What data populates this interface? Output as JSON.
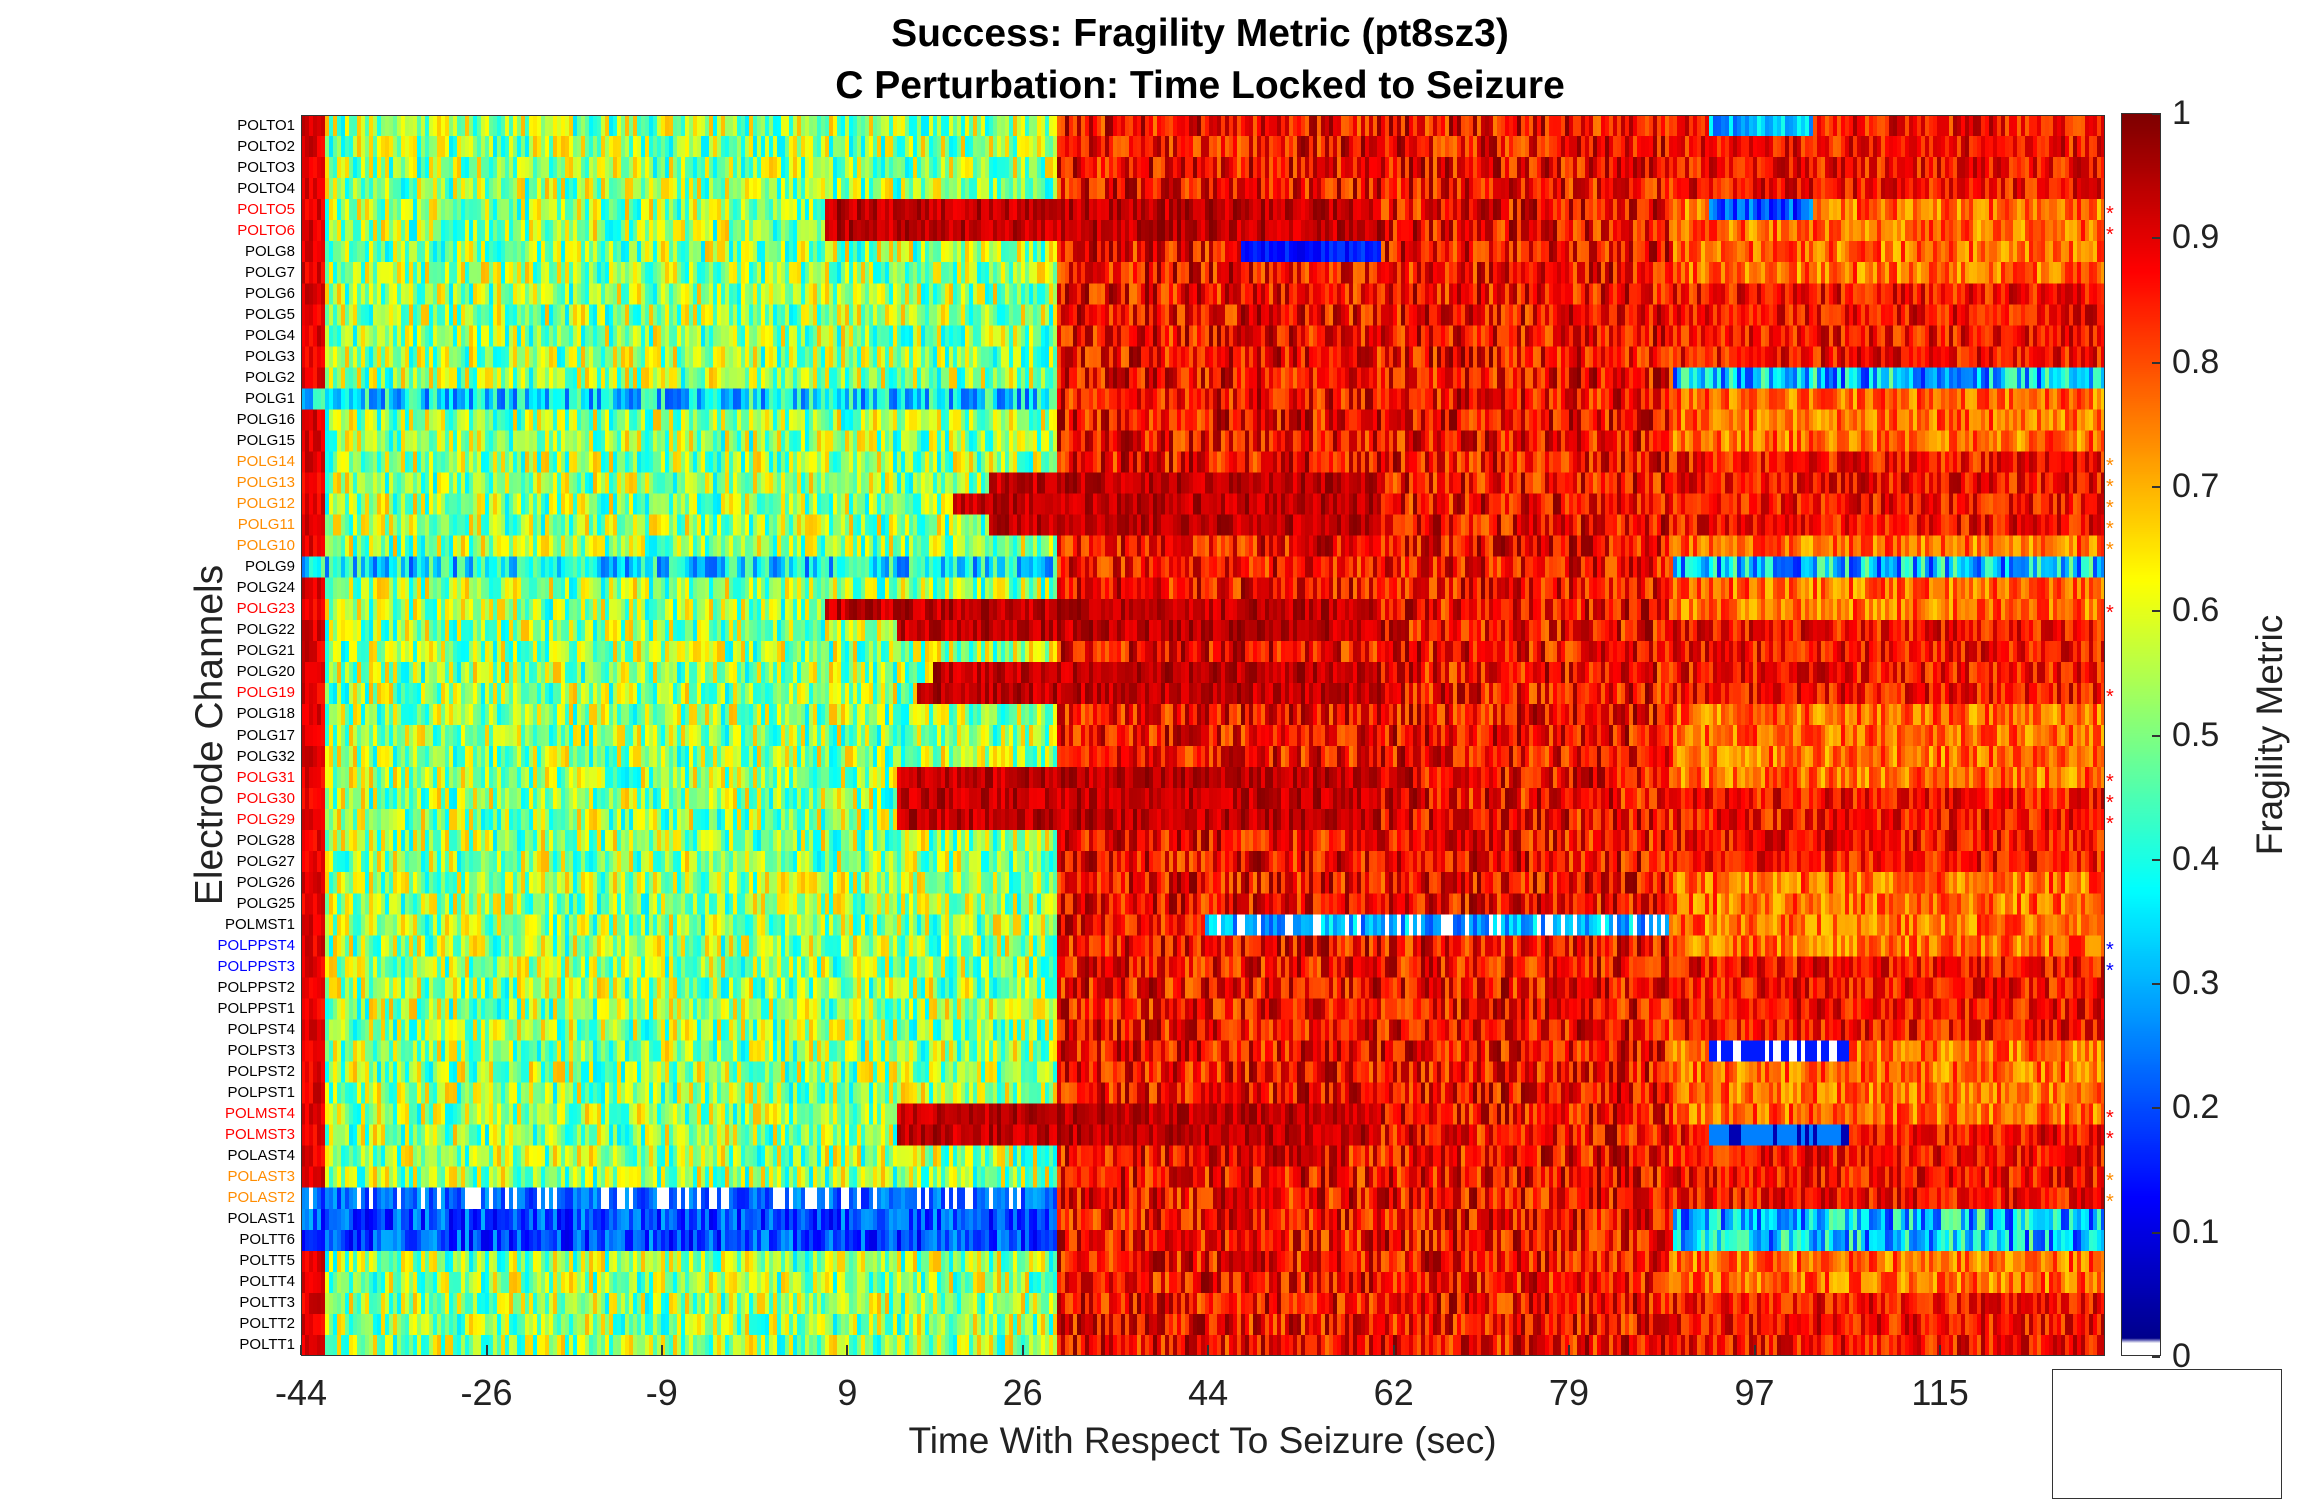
{
  "chart_data": {
    "type": "heatmap",
    "title": "Success: Fragility Metric (pt8sz3)",
    "subtitle": "C Perturbation:  Time Locked to Seizure",
    "xlabel": "Time With Respect To Seizure (sec)",
    "ylabel": "Electrode Channels",
    "xticks": [
      "-44",
      "-26",
      "-9",
      "9",
      "26",
      "44",
      "62",
      "79",
      "97",
      "115"
    ],
    "xlim": [
      -44,
      131
    ],
    "seizure_onset_sec": 0,
    "colorbar": {
      "label": "Fragility Metric",
      "ticks": [
        "0",
        "0.1",
        "0.2",
        "0.3",
        "0.4",
        "0.5",
        "0.6",
        "0.7",
        "0.8",
        "0.9",
        "1"
      ],
      "range": [
        0,
        1
      ],
      "colormap": "jet"
    },
    "channels": [
      {
        "name": "POLTO1",
        "color": "#000000",
        "marker": ""
      },
      {
        "name": "POLTO2",
        "color": "#000000",
        "marker": ""
      },
      {
        "name": "POLTO3",
        "color": "#000000",
        "marker": ""
      },
      {
        "name": "POLTO4",
        "color": "#000000",
        "marker": ""
      },
      {
        "name": "POLTO5",
        "color": "#ff0000",
        "marker": "*"
      },
      {
        "name": "POLTO6",
        "color": "#ff0000",
        "marker": "*"
      },
      {
        "name": "POLG8",
        "color": "#000000",
        "marker": ""
      },
      {
        "name": "POLG7",
        "color": "#000000",
        "marker": ""
      },
      {
        "name": "POLG6",
        "color": "#000000",
        "marker": ""
      },
      {
        "name": "POLG5",
        "color": "#000000",
        "marker": ""
      },
      {
        "name": "POLG4",
        "color": "#000000",
        "marker": ""
      },
      {
        "name": "POLG3",
        "color": "#000000",
        "marker": ""
      },
      {
        "name": "POLG2",
        "color": "#000000",
        "marker": ""
      },
      {
        "name": "POLG1",
        "color": "#000000",
        "marker": ""
      },
      {
        "name": "POLG16",
        "color": "#000000",
        "marker": ""
      },
      {
        "name": "POLG15",
        "color": "#000000",
        "marker": ""
      },
      {
        "name": "POLG14",
        "color": "#ff8c00",
        "marker": "*"
      },
      {
        "name": "POLG13",
        "color": "#ff8c00",
        "marker": "*"
      },
      {
        "name": "POLG12",
        "color": "#ff8c00",
        "marker": "*"
      },
      {
        "name": "POLG11",
        "color": "#ff8c00",
        "marker": "*"
      },
      {
        "name": "POLG10",
        "color": "#ff8c00",
        "marker": "*"
      },
      {
        "name": "POLG9",
        "color": "#000000",
        "marker": ""
      },
      {
        "name": "POLG24",
        "color": "#000000",
        "marker": ""
      },
      {
        "name": "POLG23",
        "color": "#ff0000",
        "marker": "*"
      },
      {
        "name": "POLG22",
        "color": "#000000",
        "marker": ""
      },
      {
        "name": "POLG21",
        "color": "#000000",
        "marker": ""
      },
      {
        "name": "POLG20",
        "color": "#000000",
        "marker": ""
      },
      {
        "name": "POLG19",
        "color": "#ff0000",
        "marker": "*"
      },
      {
        "name": "POLG18",
        "color": "#000000",
        "marker": ""
      },
      {
        "name": "POLG17",
        "color": "#000000",
        "marker": ""
      },
      {
        "name": "POLG32",
        "color": "#000000",
        "marker": ""
      },
      {
        "name": "POLG31",
        "color": "#ff0000",
        "marker": "*"
      },
      {
        "name": "POLG30",
        "color": "#ff0000",
        "marker": "*"
      },
      {
        "name": "POLG29",
        "color": "#ff0000",
        "marker": "*"
      },
      {
        "name": "POLG28",
        "color": "#000000",
        "marker": ""
      },
      {
        "name": "POLG27",
        "color": "#000000",
        "marker": ""
      },
      {
        "name": "POLG26",
        "color": "#000000",
        "marker": ""
      },
      {
        "name": "POLG25",
        "color": "#000000",
        "marker": ""
      },
      {
        "name": "POLMST1",
        "color": "#000000",
        "marker": ""
      },
      {
        "name": "POLPPST4",
        "color": "#0000ff",
        "marker": "*"
      },
      {
        "name": "POLPPST3",
        "color": "#0000ff",
        "marker": "*"
      },
      {
        "name": "POLPPST2",
        "color": "#000000",
        "marker": ""
      },
      {
        "name": "POLPPST1",
        "color": "#000000",
        "marker": ""
      },
      {
        "name": "POLPST4",
        "color": "#000000",
        "marker": ""
      },
      {
        "name": "POLPST3",
        "color": "#000000",
        "marker": ""
      },
      {
        "name": "POLPST2",
        "color": "#000000",
        "marker": ""
      },
      {
        "name": "POLPST1",
        "color": "#000000",
        "marker": ""
      },
      {
        "name": "POLMST4",
        "color": "#ff0000",
        "marker": "*"
      },
      {
        "name": "POLMST3",
        "color": "#ff0000",
        "marker": "*"
      },
      {
        "name": "POLAST4",
        "color": "#000000",
        "marker": ""
      },
      {
        "name": "POLAST3",
        "color": "#ff8c00",
        "marker": "*"
      },
      {
        "name": "POLAST2",
        "color": "#ff8c00",
        "marker": "*"
      },
      {
        "name": "POLAST1",
        "color": "#000000",
        "marker": ""
      },
      {
        "name": "POLTT6",
        "color": "#000000",
        "marker": ""
      },
      {
        "name": "POLTT5",
        "color": "#000000",
        "marker": ""
      },
      {
        "name": "POLTT4",
        "color": "#000000",
        "marker": ""
      },
      {
        "name": "POLTT3",
        "color": "#000000",
        "marker": ""
      },
      {
        "name": "POLTT2",
        "color": "#000000",
        "marker": ""
      },
      {
        "name": "POLTT1",
        "color": "#000000",
        "marker": ""
      }
    ]
  }
}
